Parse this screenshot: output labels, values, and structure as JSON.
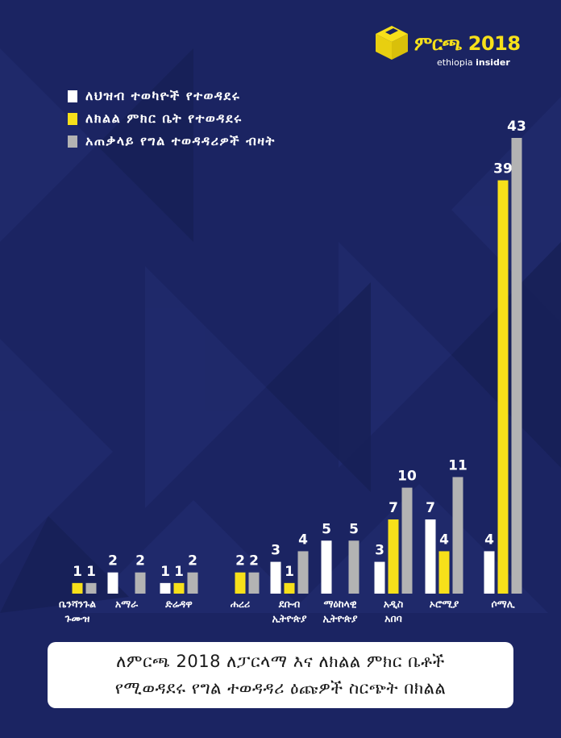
{
  "logo": {
    "name": "ምርጫ 2018",
    "sub_prefix": "ethiopia",
    "sub_brand": "insider"
  },
  "colors": {
    "background": "#1b2462",
    "federal": "#ffffff",
    "regional": "#f7e01a",
    "total": "#b3b3b3"
  },
  "chart_data": {
    "type": "bar",
    "categories": [
      [
        "ቤንሻንጉል",
        "ጉሙዝ"
      ],
      [
        "አማራ"
      ],
      [
        "ድሬዳዋ"
      ],
      [
        "ሐረሪ"
      ],
      [
        "ደቡብ",
        "ኢትዮጵያ"
      ],
      [
        "ማዕከላዊ",
        "ኢትዮጵያ"
      ],
      [
        "አዲስ",
        "አበባ"
      ],
      [
        "ኦሮሚያ"
      ],
      [
        "ሶማሊ"
      ]
    ],
    "series": [
      {
        "name": "ለህዝብ ተወካዮች የተወዳደሩ",
        "color": "#ffffff",
        "values": [
          null,
          2,
          1,
          null,
          3,
          5,
          3,
          7,
          4
        ]
      },
      {
        "name": "ለክልል ምክር ቤት የተወዳደሩ",
        "color": "#f7e01a",
        "values": [
          1,
          null,
          1,
          2,
          1,
          null,
          7,
          4,
          39
        ]
      },
      {
        "name": "አጠቃላይ የግል ተወዳዳሪዎች ብዛት",
        "color": "#b3b3b3",
        "values": [
          1,
          2,
          2,
          2,
          4,
          5,
          10,
          11,
          43
        ]
      }
    ],
    "ylim": [
      0,
      43
    ],
    "grid": false,
    "legend": "top-left"
  },
  "caption": {
    "line1": "ለምርጫ 2018 ለፓርላማ እና ለክልል ምክር ቤቶች",
    "line2": "የሚወዳደሩ የግል ተወዳዳሪ ዕጩዎች ስርጭት በክልል"
  }
}
